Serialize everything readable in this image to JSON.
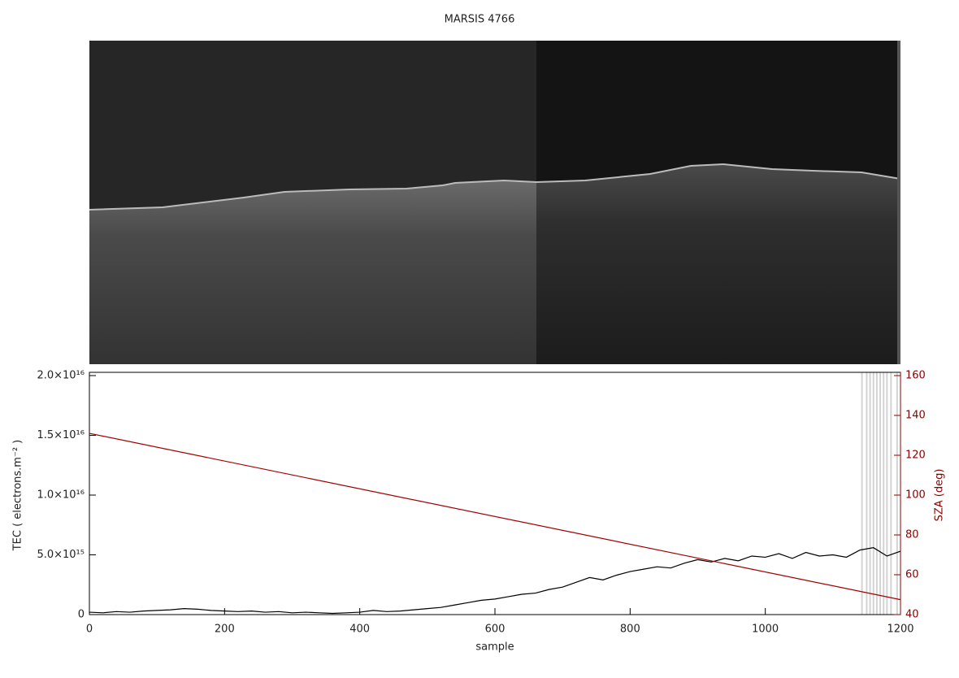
{
  "chart_data": {
    "type": "line",
    "title": "MARSIS 4766",
    "xlabel": "sample",
    "ylabel": "TEC ( electrons.m⁻² )",
    "y2label": "SZA (deg)",
    "y2color": "#8b0000",
    "xlim": [
      0,
      1200
    ],
    "xticks": [
      0,
      200,
      400,
      600,
      800,
      1000,
      1200
    ],
    "ylim": [
      0,
      2e+16
    ],
    "yticks": [
      0,
      {
        "value": 5000000000000000.0,
        "label": "5.0×10¹⁵"
      },
      {
        "value": 1e+16,
        "label": "1.0×10¹⁶"
      },
      {
        "value": 1.5e+16,
        "label": "1.5×10¹⁶"
      },
      {
        "value": 2e+16,
        "label": "2.0×10¹⁶"
      }
    ],
    "y2lim": [
      40,
      160
    ],
    "y2ticks": [
      40,
      60,
      80,
      100,
      120,
      140,
      160
    ],
    "highlight_x": [
      1143,
      1150,
      1155,
      1160,
      1165,
      1170,
      1175,
      1180,
      1186,
      1195
    ],
    "highlight_color": "#d3d3d3",
    "series": [
      {
        "name": "TEC",
        "color": "#000000",
        "x": [
          0,
          20,
          40,
          60,
          80,
          100,
          120,
          140,
          160,
          180,
          200,
          220,
          240,
          260,
          280,
          300,
          320,
          340,
          360,
          380,
          400,
          420,
          440,
          460,
          480,
          500,
          520,
          540,
          560,
          580,
          600,
          620,
          640,
          660,
          680,
          700,
          720,
          740,
          760,
          780,
          800,
          820,
          840,
          860,
          880,
          900,
          920,
          940,
          960,
          980,
          1000,
          1020,
          1040,
          1060,
          1080,
          1100,
          1120,
          1140,
          1160,
          1180,
          1200
        ],
        "values": [
          200000000000000.0,
          150000000000000.0,
          250000000000000.0,
          200000000000000.0,
          300000000000000.0,
          350000000000000.0,
          400000000000000.0,
          500000000000000.0,
          450000000000000.0,
          350000000000000.0,
          300000000000000.0,
          250000000000000.0,
          300000000000000.0,
          200000000000000.0,
          250000000000000.0,
          150000000000000.0,
          200000000000000.0,
          150000000000000.0,
          100000000000000.0,
          150000000000000.0,
          200000000000000.0,
          350000000000000.0,
          250000000000000.0,
          300000000000000.0,
          400000000000000.0,
          500000000000000.0,
          600000000000000.0,
          800000000000000.0,
          1000000000000000.0,
          1200000000000000.0,
          1300000000000000.0,
          1500000000000000.0,
          1700000000000000.0,
          1800000000000000.0,
          2100000000000000.0,
          2300000000000000.0,
          2700000000000000.0,
          3100000000000000.0,
          2900000000000000.0,
          3300000000000000.0,
          3600000000000000.0,
          3800000000000000.0,
          4000000000000000.0,
          3900000000000000.0,
          4300000000000000.0,
          4600000000000000.0,
          4400000000000000.0,
          4700000000000000.0,
          4500000000000000.0,
          4900000000000000.0,
          4800000000000000.0,
          5100000000000000.0,
          4700000000000000.0,
          5200000000000000.0,
          4900000000000000.0,
          5000000000000000.0,
          4800000000000000.0,
          5400000000000000.0,
          5600000000000000.0,
          4900000000000000.0,
          5300000000000000.0
        ]
      },
      {
        "name": "SZA",
        "color": "#a00000",
        "axis": "y2",
        "x": [
          0,
          1200
        ],
        "values": [
          131,
          47.5
        ]
      }
    ]
  }
}
